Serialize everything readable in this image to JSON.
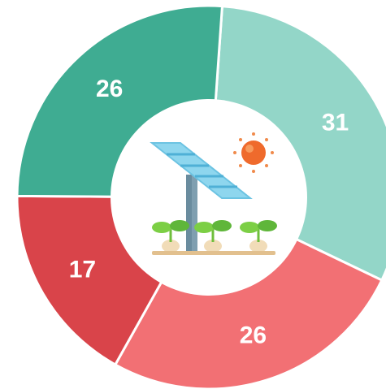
{
  "chart_data": {
    "type": "donut",
    "values": [
      31,
      26,
      17,
      26
    ],
    "colors": [
      "#93d6c8",
      "#f27074",
      "#d9444a",
      "#3fac92"
    ]
  }
}
